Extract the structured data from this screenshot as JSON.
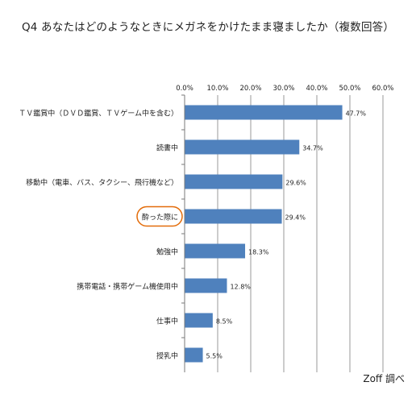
{
  "title": "Q4 あなたはどのようなときにメガネをかけたまま寝ましたか（複数回答）",
  "source": "Zoff 調べ",
  "chart_data": {
    "type": "bar",
    "orientation": "horizontal",
    "title": "Q4 あなたはどのようなときにメガネをかけたまま寝ましたか（複数回答）",
    "categories": [
      "ＴＶ鑑賞中（ＤＶＤ鑑賞、ＴＶゲーム中を含む）",
      "読書中",
      "移動中（電車、バス、タクシー、飛行機など）",
      "酔った際に",
      "勉強中",
      "携帯電話・携帯ゲーム機使用中",
      "仕事中",
      "授乳中"
    ],
    "values": [
      47.7,
      34.7,
      29.6,
      29.4,
      18.3,
      12.8,
      8.5,
      5.5
    ],
    "value_labels": [
      "47.7%",
      "34.7%",
      "29.6%",
      "29.4%",
      "18.3%",
      "12.8%",
      "8.5%",
      "5.5%"
    ],
    "xlim": [
      0,
      60
    ],
    "ticks": [
      "0.0%",
      "10.0%",
      "20.0%",
      "30.0%",
      "40.0%",
      "50.0%",
      "60.0%"
    ],
    "tick_values": [
      0,
      10,
      20,
      30,
      40,
      50,
      60
    ],
    "axis_position": "top",
    "grid": true,
    "highlighted_category": "酔った際に",
    "bar_color": "#4f81bd",
    "highlight_color": "#e36c0a"
  }
}
